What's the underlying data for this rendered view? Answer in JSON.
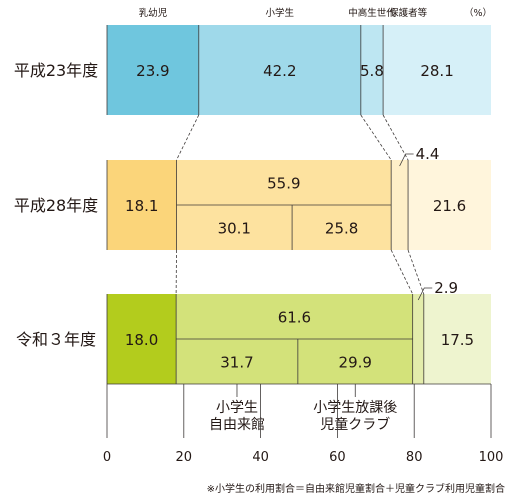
{
  "chart_data": {
    "type": "bar",
    "orientation": "horizontal",
    "stacked": true,
    "xlim": [
      0,
      100
    ],
    "xticks": [
      "0",
      "20",
      "40",
      "60",
      "80",
      "100"
    ],
    "percent_unit": "（%）",
    "column_headers": [
      "乳幼児",
      "小学生",
      "中高生世代",
      "保護者等"
    ],
    "rows": [
      {
        "label": "平成23年度",
        "segments": [
          {
            "name": "乳幼児",
            "value": 23.9,
            "label": "23.9",
            "color": "#6fc6de"
          },
          {
            "name": "小学生",
            "value": 42.2,
            "label": "42.2",
            "color": "#9fd9ea"
          },
          {
            "name": "中高生世代",
            "value": 5.8,
            "label": "5.8",
            "color": "#bde6f2"
          },
          {
            "name": "保護者等",
            "value": 28.1,
            "label": "28.1",
            "color": "#d6f0f8"
          }
        ],
        "sub_segments": []
      },
      {
        "label": "平成28年度",
        "segments": [
          {
            "name": "乳幼児",
            "value": 18.1,
            "label": "18.1",
            "color": "#fbd57a"
          },
          {
            "name": "小学生",
            "value": 55.9,
            "label": "55.9",
            "color": "#fde29f"
          },
          {
            "name": "中高生世代",
            "value": 4.4,
            "label": "4.4",
            "color": "#feefc8"
          },
          {
            "name": "保護者等",
            "value": 21.6,
            "label": "21.6",
            "color": "#fff5dc"
          }
        ],
        "sub_segments": [
          {
            "name": "小学生自由来館",
            "value": 30.1,
            "label": "30.1"
          },
          {
            "name": "小学生放課後児童クラブ",
            "value": 25.8,
            "label": "25.8"
          }
        ]
      },
      {
        "label": "令和３年度",
        "segments": [
          {
            "name": "乳幼児",
            "value": 18.0,
            "label": "18.0",
            "color": "#b3cc1d"
          },
          {
            "name": "小学生",
            "value": 61.6,
            "label": "61.6",
            "color": "#d3e27a"
          },
          {
            "name": "中高生世代",
            "value": 2.9,
            "label": "2.9",
            "color": "#e3ecab"
          },
          {
            "name": "保護者等",
            "value": 17.5,
            "label": "17.5",
            "color": "#eef4cf"
          }
        ],
        "sub_segments": [
          {
            "name": "小学生自由来館",
            "value": 31.7,
            "label": "31.7"
          },
          {
            "name": "小学生放課後児童クラブ",
            "value": 29.9,
            "label": "29.9"
          }
        ]
      }
    ],
    "annotations": [
      {
        "lines": [
          "小学生",
          "自由来館"
        ]
      },
      {
        "lines": [
          "小学生放課後",
          "児童クラブ"
        ]
      }
    ],
    "footnote": "※小学生の利用割合＝自由来館児童割合＋児童クラブ利用児童割合",
    "grid": false
  }
}
